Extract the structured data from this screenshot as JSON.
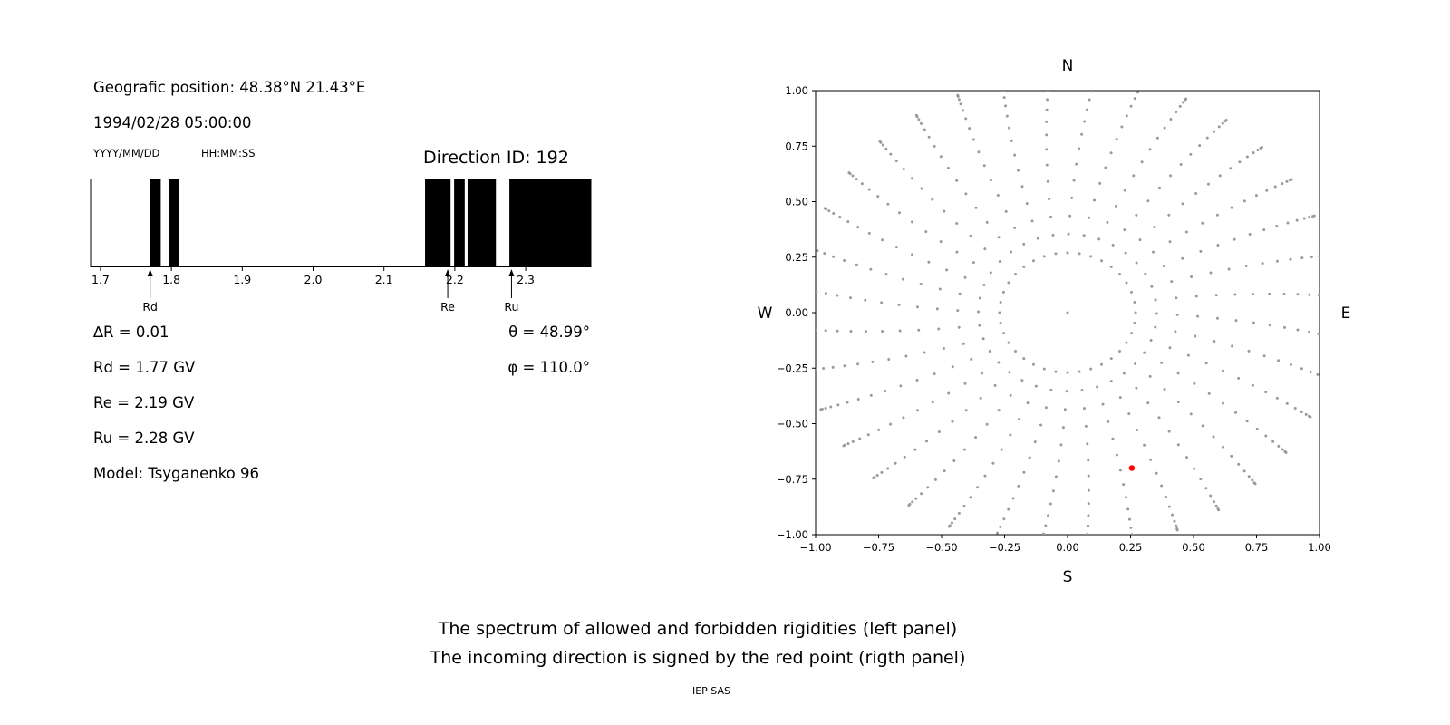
{
  "left_panel": {
    "geo_position": "Geografic position: 48.38°N 21.43°E",
    "datetime": "1994/02/28 05:00:00",
    "date_format_label": "YYYY/MM/DD",
    "time_format_label": "HH:MM:SS",
    "direction_id": "Direction ID: 192",
    "info_lines": [
      "∆R = 0.01",
      "Rd = 1.77 GV",
      "Re = 2.19 GV",
      "Ru = 2.28 GV",
      "Model: Tsyganenko 96"
    ],
    "theta": "θ = 48.99°",
    "phi": "φ = 110.0°"
  },
  "captions": {
    "line1": "The spectrum of allowed and forbidden rigidities (left panel)",
    "line2": "The incoming direction is signed by the red point (rigth panel)",
    "credit": "IEP SAS"
  },
  "chart_data": [
    {
      "type": "bar",
      "name": "rigidity_spectrum",
      "xlim": [
        1.686,
        2.392
      ],
      "xticks": [
        1.7,
        1.8,
        1.9,
        2.0,
        2.1,
        2.2,
        2.3
      ],
      "xtick_labels": [
        "1.7",
        "1.8",
        "1.9",
        "2.0",
        "2.1",
        "2.2",
        "2.3"
      ],
      "band_color": "#000000",
      "background": "#ffffff",
      "bands_gv": [
        [
          1.77,
          1.785
        ],
        [
          1.796,
          1.811
        ],
        [
          2.158,
          2.194
        ],
        [
          2.199,
          2.214
        ],
        [
          2.218,
          2.258
        ],
        [
          2.277,
          2.392
        ]
      ],
      "markers": [
        {
          "label": "Rd",
          "value_gv": 1.77
        },
        {
          "label": "Re",
          "value_gv": 2.19
        },
        {
          "label": "Ru",
          "value_gv": 2.28
        }
      ]
    },
    {
      "type": "scatter",
      "name": "incoming_direction_map",
      "xlim": [
        -1,
        1
      ],
      "ylim": [
        -1,
        1
      ],
      "xticks": [
        -1,
        -0.75,
        -0.5,
        -0.25,
        0,
        0.25,
        0.5,
        0.75,
        1
      ],
      "xtick_labels": [
        "−1.00",
        "−0.75",
        "−0.50",
        "−0.25",
        "0.00",
        "0.25",
        "0.50",
        "0.75",
        "1.00"
      ],
      "yticks": [
        1,
        0.75,
        0.5,
        0.25,
        0,
        -0.25,
        -0.5,
        -0.75,
        -1
      ],
      "ytick_labels": [
        "1.00",
        "0.75",
        "0.50",
        "0.25",
        "0.00",
        "−0.25",
        "−0.50",
        "−0.75",
        "−1.00"
      ],
      "compass": {
        "n": "N",
        "s": "S",
        "e": "E",
        "w": "W"
      },
      "gray_color": "#9a9a9a",
      "red_color": "#ff0000",
      "center_point": {
        "x": 0,
        "y": 0
      },
      "red_point": {
        "x": 0.255,
        "y": -0.7
      },
      "ray_generator": {
        "azimuth_start_deg": 0,
        "azimuth_step_deg": 10,
        "azimuth_count": 36,
        "radii": [
          0.27,
          0.354,
          0.436,
          0.517,
          0.596,
          0.67,
          0.74,
          0.805,
          0.864,
          0.917,
          0.963,
          1.001,
          1.031,
          1.052,
          1.066,
          1.072
        ],
        "drift_deg_total": 6
      }
    }
  ]
}
